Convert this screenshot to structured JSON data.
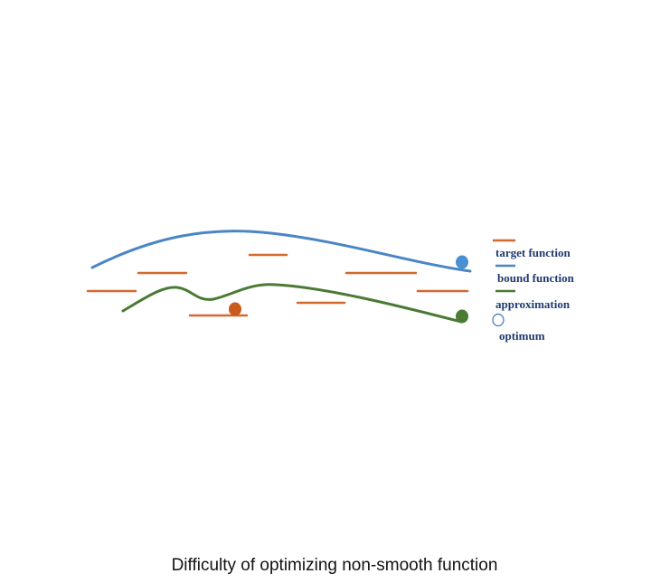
{
  "colors": {
    "target": "#d2692f",
    "bound": "#4a86c5",
    "approximation": "#4b7a34",
    "optimum_marker": "#3e73b8",
    "legend_text": "#1f3a6e"
  },
  "legend": {
    "target_label": "target function",
    "bound_label": "bound function",
    "approximation_label": "approximation",
    "optimum_label": "optimum"
  },
  "caption": "Difficulty of optimizing non-smooth function"
}
